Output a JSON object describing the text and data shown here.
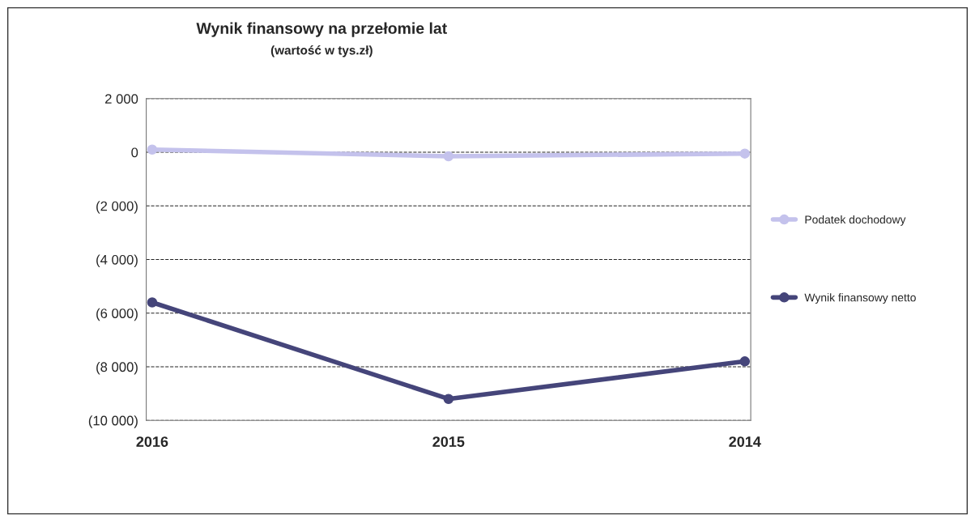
{
  "chart_data": {
    "type": "line",
    "title": "Wynik finansowy na przełomie lat",
    "subtitle": "(wartość w tys.zł)",
    "categories": [
      "2016",
      "2015",
      "2014"
    ],
    "series": [
      {
        "name": "Podatek dochodowy",
        "color": "#c4c2ec",
        "values": [
          100,
          -150,
          -50
        ]
      },
      {
        "name": "Wynik finansowy netto",
        "color": "#45457a",
        "values": [
          -5600,
          -9200,
          -7800
        ]
      }
    ],
    "ylim": [
      -10000,
      2000
    ],
    "yticks": [
      {
        "value": 2000,
        "label": "2 000"
      },
      0,
      {
        "value": -2000,
        "label": "(2 000)"
      },
      {
        "value": -4000,
        "label": "(4 000)"
      },
      {
        "value": -6000,
        "label": "(6 000)"
      },
      {
        "value": -8000,
        "label": "(8 000)"
      },
      {
        "value": -10000,
        "label": "(10 000)"
      }
    ],
    "grid": "y",
    "legend": "right",
    "marker": "circle",
    "line_style": "solid"
  }
}
